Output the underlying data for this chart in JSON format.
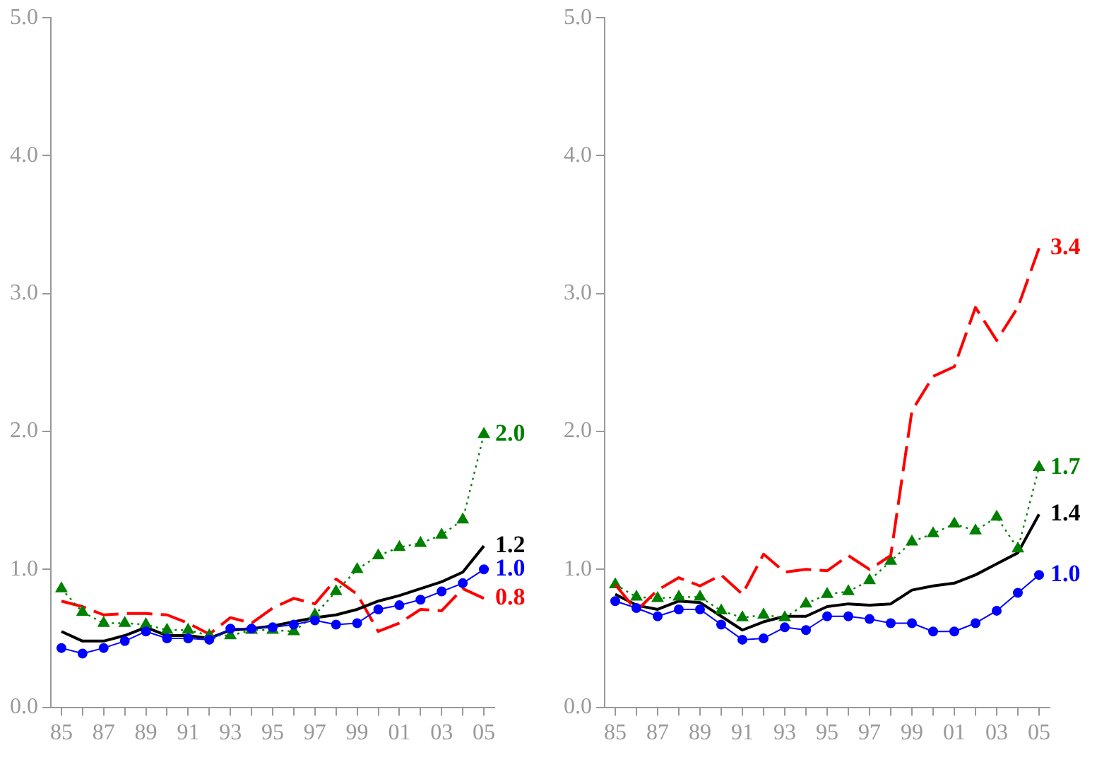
{
  "chart_data": [
    {
      "type": "line",
      "categories": [
        "85",
        null,
        "87",
        null,
        "89",
        null,
        "91",
        null,
        "93",
        null,
        "95",
        null,
        "97",
        null,
        "99",
        null,
        "01",
        null,
        "03",
        null,
        "05"
      ],
      "ylim": [
        0,
        5
      ],
      "yticks": [
        {
          "value": 0,
          "label": "0.0"
        },
        {
          "value": 1,
          "label": "1.0"
        },
        {
          "value": 2,
          "label": "2.0"
        },
        {
          "value": 3,
          "label": "3.0"
        },
        {
          "value": 4,
          "label": "4.0"
        },
        {
          "value": 5,
          "label": "5.0"
        }
      ],
      "grid": false,
      "legend": false,
      "series": [
        {
          "color": "#008000",
          "marker": "triangle",
          "line_style": "dotted",
          "values": [
            0.86,
            0.69,
            0.61,
            0.61,
            0.6,
            0.56,
            0.56,
            0.52,
            0.52,
            0.56,
            0.56,
            0.55,
            0.67,
            0.84,
            1.0,
            1.1,
            1.16,
            1.19,
            1.25,
            1.36,
            1.98
          ]
        },
        {
          "color": "#000000",
          "marker": "none",
          "line_style": "solid",
          "values": [
            0.55,
            0.48,
            0.48,
            0.52,
            0.58,
            0.52,
            0.52,
            0.5,
            0.56,
            0.57,
            0.59,
            0.62,
            0.65,
            0.67,
            0.71,
            0.77,
            0.81,
            0.86,
            0.91,
            0.98,
            1.17
          ]
        },
        {
          "color": "#0000ff",
          "marker": "circle",
          "line_style": "solid",
          "values": [
            0.43,
            0.39,
            0.43,
            0.48,
            0.55,
            0.5,
            0.5,
            0.49,
            0.57,
            0.57,
            0.58,
            0.6,
            0.63,
            0.6,
            0.61,
            0.71,
            0.74,
            0.78,
            0.84,
            0.9,
            1.0
          ]
        },
        {
          "color": "#ff0000",
          "marker": "none",
          "line_style": "dashed",
          "values": [
            0.77,
            0.73,
            0.67,
            0.68,
            0.68,
            0.67,
            0.61,
            0.53,
            0.65,
            0.61,
            0.72,
            0.79,
            0.75,
            0.93,
            0.82,
            0.55,
            0.61,
            0.71,
            0.7,
            0.86,
            0.79
          ]
        }
      ],
      "annotations": [
        {
          "text": "2.0",
          "x": "05",
          "y": 1.98
        },
        {
          "text": "1.2",
          "x": "05",
          "y": 1.17
        },
        {
          "text": "1.0",
          "x": "05",
          "y": 1.0
        },
        {
          "text": "0.8",
          "x": "05",
          "y": 0.79
        }
      ]
    },
    {
      "type": "line",
      "categories": [
        "85",
        null,
        "87",
        null,
        "89",
        null,
        "91",
        null,
        "93",
        null,
        "95",
        null,
        "97",
        null,
        "99",
        null,
        "01",
        null,
        "03",
        null,
        "05"
      ],
      "ylim": [
        0,
        5
      ],
      "yticks": [
        {
          "value": 0,
          "label": "0.0"
        },
        {
          "value": 1,
          "label": "1.0"
        },
        {
          "value": 2,
          "label": "2.0"
        },
        {
          "value": 3,
          "label": "3.0"
        },
        {
          "value": 4,
          "label": "4.0"
        },
        {
          "value": 5,
          "label": "5.0"
        }
      ],
      "grid": false,
      "legend": false,
      "series": [
        {
          "color": "#ff0000",
          "marker": "none",
          "line_style": "dashed",
          "values": [
            0.89,
            0.7,
            0.85,
            0.94,
            0.88,
            0.96,
            0.82,
            1.11,
            0.98,
            1.0,
            0.99,
            1.1,
            1.0,
            1.1,
            2.15,
            2.4,
            2.47,
            2.9,
            2.66,
            2.9,
            3.33
          ]
        },
        {
          "color": "#008000",
          "marker": "triangle",
          "line_style": "dotted",
          "values": [
            0.89,
            0.8,
            0.79,
            0.8,
            0.8,
            0.7,
            0.65,
            0.67,
            0.65,
            0.75,
            0.82,
            0.84,
            0.92,
            1.06,
            1.2,
            1.26,
            1.33,
            1.28,
            1.38,
            1.15,
            1.74
          ]
        },
        {
          "color": "#000000",
          "marker": "none",
          "line_style": "solid",
          "values": [
            0.82,
            0.74,
            0.71,
            0.77,
            0.76,
            0.66,
            0.56,
            0.62,
            0.66,
            0.66,
            0.73,
            0.75,
            0.74,
            0.75,
            0.85,
            0.88,
            0.9,
            0.96,
            1.04,
            1.12,
            1.4
          ]
        },
        {
          "color": "#0000ff",
          "marker": "circle",
          "line_style": "solid",
          "values": [
            0.77,
            0.72,
            0.66,
            0.71,
            0.71,
            0.6,
            0.49,
            0.5,
            0.58,
            0.56,
            0.66,
            0.66,
            0.64,
            0.61,
            0.61,
            0.55,
            0.55,
            0.61,
            0.7,
            0.83,
            0.96
          ]
        }
      ],
      "annotations": [
        {
          "text": "3.4",
          "x": "05",
          "y": 3.33
        },
        {
          "text": "1.7",
          "x": "05",
          "y": 1.74
        },
        {
          "text": "1.4",
          "x": "05",
          "y": 1.4
        },
        {
          "text": "1.0",
          "x": "05",
          "y": 0.96
        }
      ]
    }
  ]
}
